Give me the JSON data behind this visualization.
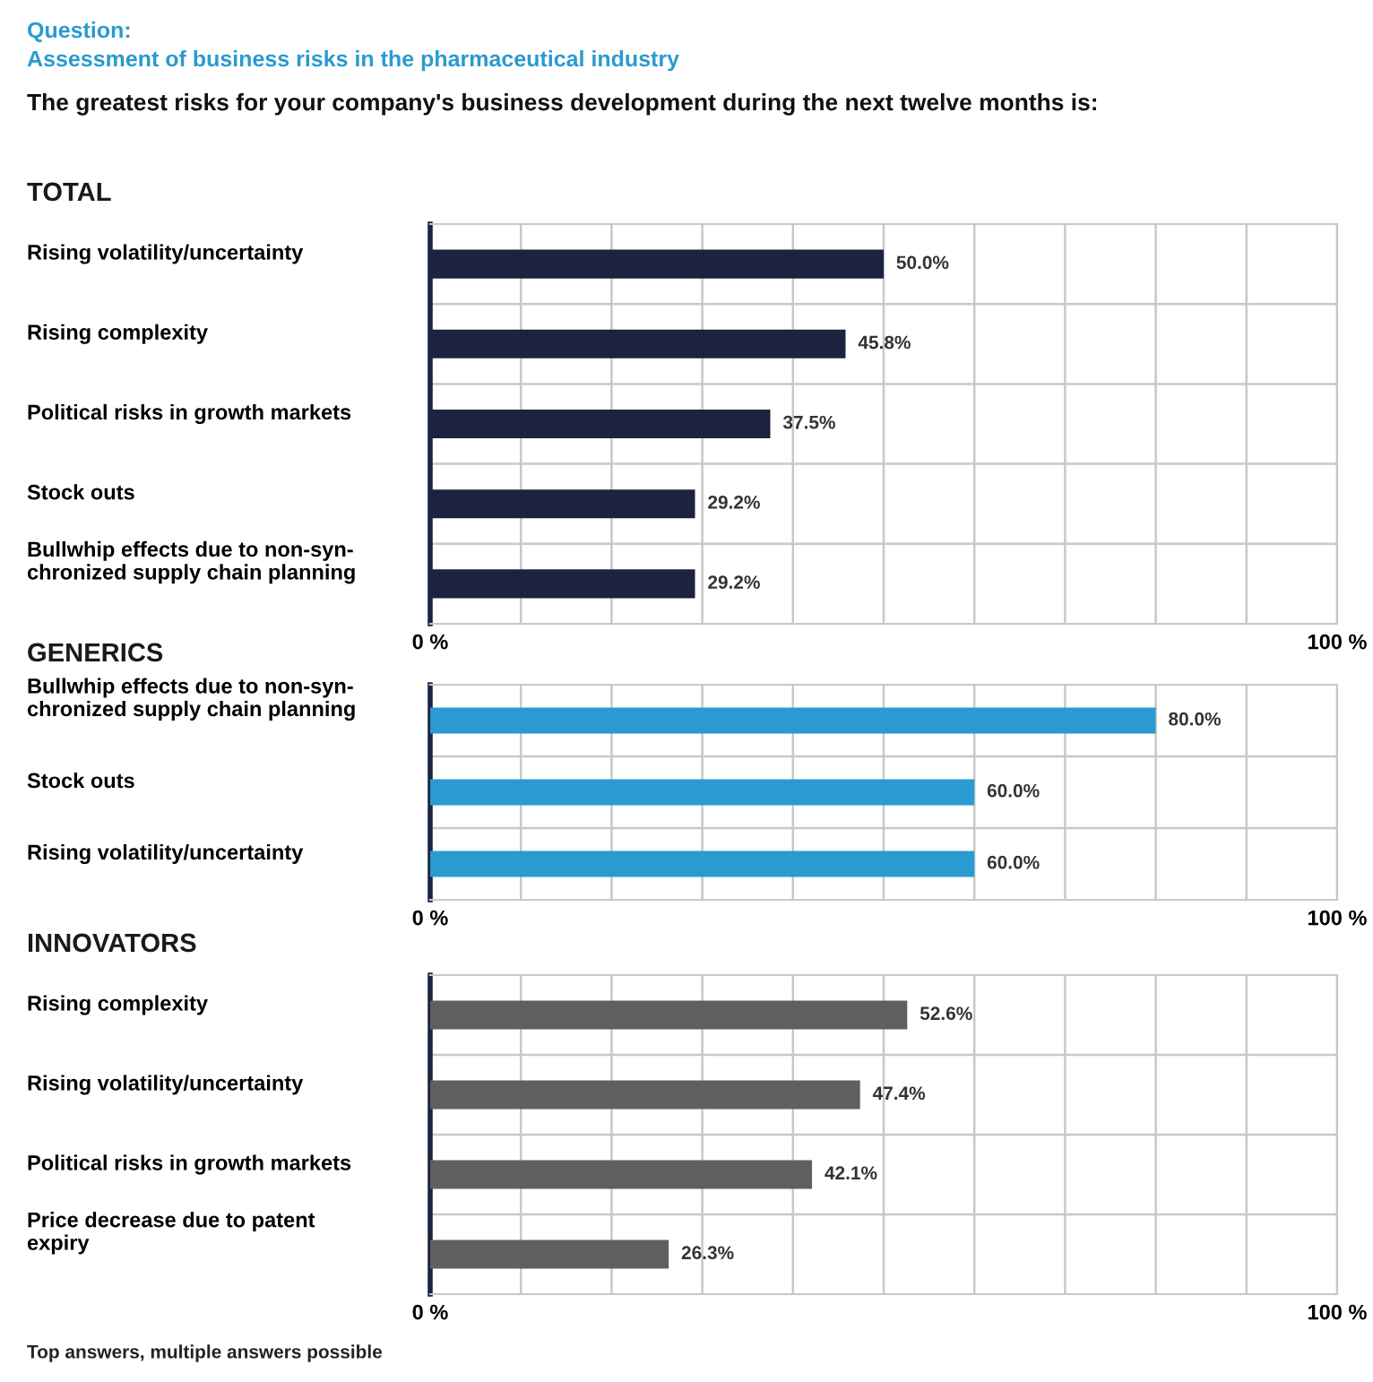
{
  "chart_data": [
    {
      "type": "bar",
      "orientation": "horizontal",
      "title": "TOTAL",
      "annotations": [
        "Question:",
        "Assessment of business risks in the pharmaceutical industry",
        "The greatest risks for your company's business development during the next twelve months is:"
      ],
      "categories": [
        "Rising volatility/uncertainty",
        "Rising complexity",
        "Political risks in growth markets",
        "Stock outs",
        "Bullwhip effects due to non-syn-\nchronized supply chain planning"
      ],
      "values": [
        50.0,
        45.8,
        37.5,
        29.2,
        29.2
      ],
      "color": "#1c2340",
      "value_labels": [
        "50.0%",
        "45.8%",
        "37.5%",
        "29.2%",
        "29.2%"
      ],
      "xlim": [
        0,
        100
      ],
      "xticks": [
        {
          "value": 0,
          "label": "0 %"
        },
        {
          "value": 10,
          "label": null
        },
        {
          "value": 20,
          "label": null
        },
        {
          "value": 30,
          "label": null
        },
        {
          "value": 40,
          "label": null
        },
        {
          "value": 50,
          "label": null
        },
        {
          "value": 60,
          "label": null
        },
        {
          "value": 70,
          "label": null
        },
        {
          "value": 80,
          "label": null
        },
        {
          "value": 90,
          "label": null
        },
        {
          "value": 100,
          "label": "100 %"
        }
      ],
      "grid": true
    },
    {
      "type": "bar",
      "orientation": "horizontal",
      "title": "GENERICS",
      "categories": [
        "Bullwhip effects due to non-syn-\nchronized supply chain planning",
        "Stock outs",
        "Rising volatility/uncertainty"
      ],
      "values": [
        80.0,
        60.0,
        60.0
      ],
      "color": "#2a9ad0",
      "value_labels": [
        "80.0%",
        "60.0%",
        "60.0%"
      ],
      "xlim": [
        0,
        100
      ],
      "xticks": [
        {
          "value": 0,
          "label": "0 %"
        },
        {
          "value": 10,
          "label": null
        },
        {
          "value": 20,
          "label": null
        },
        {
          "value": 30,
          "label": null
        },
        {
          "value": 40,
          "label": null
        },
        {
          "value": 50,
          "label": null
        },
        {
          "value": 60,
          "label": null
        },
        {
          "value": 70,
          "label": null
        },
        {
          "value": 80,
          "label": null
        },
        {
          "value": 90,
          "label": null
        },
        {
          "value": 100,
          "label": "100 %"
        }
      ],
      "grid": true
    },
    {
      "type": "bar",
      "orientation": "horizontal",
      "title": "INNOVATORS",
      "annotations": [
        "Top answers, multiple answers possible"
      ],
      "categories": [
        "Rising complexity",
        "Rising volatility/uncertainty",
        "Political risks in growth markets",
        "Price decrease due to patent\nexpiry"
      ],
      "values": [
        52.6,
        47.4,
        42.1,
        26.3
      ],
      "color": "#5f5f5f",
      "value_labels": [
        "52.6%",
        "47.4%",
        "42.1%",
        "26.3%"
      ],
      "xlim": [
        0,
        100
      ],
      "xticks": [
        {
          "value": 0,
          "label": "0 %"
        },
        {
          "value": 10,
          "label": null
        },
        {
          "value": 20,
          "label": null
        },
        {
          "value": 30,
          "label": null
        },
        {
          "value": 40,
          "label": null
        },
        {
          "value": 50,
          "label": null
        },
        {
          "value": 60,
          "label": null
        },
        {
          "value": 70,
          "label": null
        },
        {
          "value": 80,
          "label": null
        },
        {
          "value": 90,
          "label": null
        },
        {
          "value": 100,
          "label": "100 %"
        }
      ],
      "grid": true
    }
  ]
}
